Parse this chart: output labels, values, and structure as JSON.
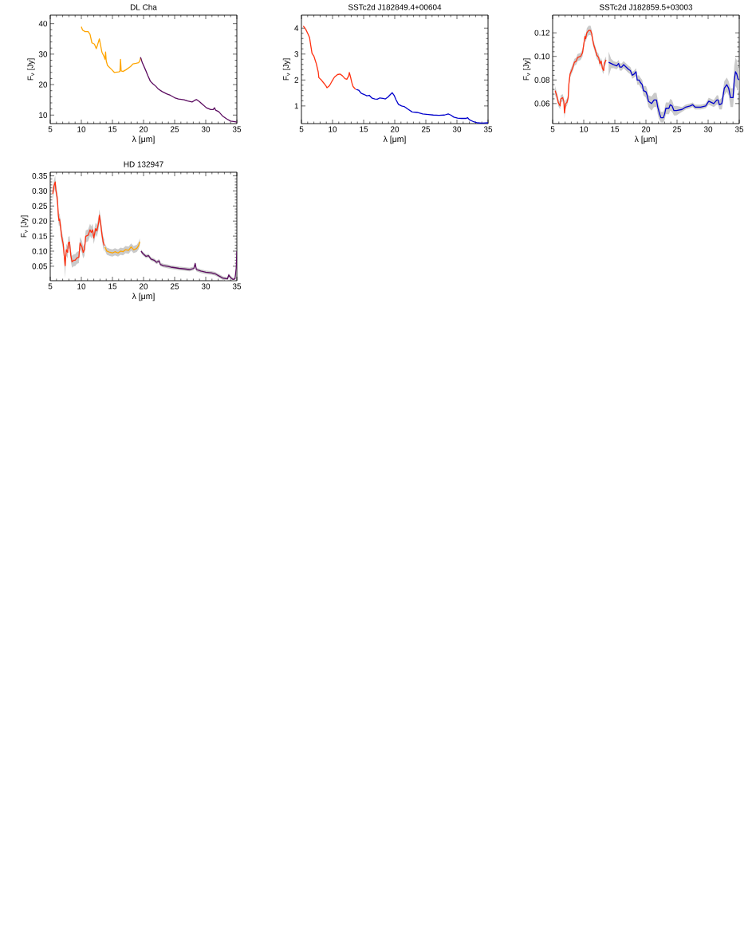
{
  "chart_data": [
    {
      "type": "line",
      "title": "DL Cha",
      "xlabel": "λ [μm]",
      "ylabel": "F$_{ν}$ [Jy]",
      "xlim": [
        5,
        35
      ],
      "ylim": [
        7.2,
        42.8
      ],
      "xticks": [
        5,
        10,
        15,
        20,
        25,
        30,
        35
      ],
      "yticks": [
        10,
        20,
        30,
        40
      ],
      "series": [
        {
          "color": "#ffa500",
          "x": [
            10.0,
            10.2,
            10.6,
            11.1,
            11.4,
            11.7,
            12.1,
            12.4,
            12.6,
            12.9,
            13.1,
            13.3,
            13.7,
            13.8,
            13.9,
            14.0,
            14.2,
            14.9,
            15.3,
            16.0,
            16.2,
            16.3,
            16.4,
            16.7,
            17.2,
            17.9,
            18.3,
            18.8,
            19.2,
            19.4,
            19.5
          ],
          "values": [
            39.0,
            37.9,
            37.4,
            37.4,
            36.5,
            33.7,
            33.3,
            31.8,
            33.0,
            35.0,
            32.9,
            30.7,
            29.0,
            28.3,
            30.7,
            27.8,
            26.3,
            24.9,
            24.0,
            24.2,
            24.3,
            28.3,
            24.5,
            24.3,
            24.9,
            25.9,
            26.8,
            27.0,
            27.2,
            27.8,
            28.7
          ]
        },
        {
          "color": "#5a0a5f",
          "x": [
            19.5,
            19.6,
            19.8,
            20.3,
            20.7,
            21.1,
            21.5,
            22.0,
            22.4,
            23.0,
            23.7,
            24.3,
            25.0,
            25.6,
            26.5,
            27.1,
            27.8,
            28.2,
            28.5,
            29.0,
            29.5,
            30.1,
            30.8,
            31.2,
            31.4,
            31.6,
            32.1,
            32.7,
            33.4,
            34.0,
            34.7,
            35.0
          ],
          "values": [
            29.0,
            28.5,
            27.2,
            24.9,
            22.9,
            21.1,
            20.3,
            19.4,
            18.5,
            17.7,
            17.0,
            16.5,
            15.7,
            15.3,
            15.0,
            14.6,
            14.3,
            14.8,
            15.1,
            14.4,
            13.5,
            12.4,
            11.8,
            11.8,
            12.4,
            11.6,
            11.1,
            9.7,
            8.7,
            8.0,
            7.8,
            7.7
          ]
        }
      ]
    },
    {
      "type": "line",
      "title": "SSTc2d J182849.4+00604",
      "xlabel": "λ [μm]",
      "ylabel": "F$_{ν}$ [Jy]",
      "xlim": [
        5,
        35
      ],
      "ylim": [
        0.32,
        4.5
      ],
      "xticks": [
        5,
        10,
        15,
        20,
        25,
        30,
        35
      ],
      "yticks": [
        1,
        2,
        3,
        4
      ],
      "series": [
        {
          "color": "#ff3010",
          "x": [
            5.3,
            5.7,
            6.0,
            6.3,
            6.5,
            6.7,
            7.0,
            7.2,
            7.4,
            7.7,
            7.8,
            8.2,
            8.6,
            9.0,
            9.1,
            9.5,
            9.9,
            10.3,
            10.8,
            11.2,
            11.6,
            12.0,
            12.3,
            12.6,
            12.7,
            12.9,
            13.1,
            13.3,
            13.7
          ],
          "values": [
            4.08,
            3.95,
            3.8,
            3.64,
            3.33,
            3.03,
            2.92,
            2.77,
            2.62,
            2.31,
            2.09,
            2.0,
            1.88,
            1.75,
            1.7,
            1.78,
            1.95,
            2.11,
            2.21,
            2.23,
            2.16,
            2.05,
            2.03,
            2.16,
            2.29,
            2.11,
            1.9,
            1.75,
            1.64
          ]
        },
        {
          "color": "#0000cc",
          "x": [
            13.8,
            14.2,
            14.6,
            15.1,
            15.5,
            15.9,
            16.3,
            16.8,
            17.2,
            17.6,
            18.1,
            18.5,
            18.9,
            19.3,
            19.6,
            19.9,
            20.2,
            20.6,
            21.1,
            21.5,
            22.1,
            22.8,
            23.6,
            24.5,
            25.4,
            26.2,
            27.1,
            28.0,
            28.6,
            29.0,
            29.5,
            30.1,
            30.7,
            31.5,
            31.7,
            32.0,
            32.7,
            33.3,
            34.0,
            35.0
          ],
          "values": [
            1.64,
            1.61,
            1.49,
            1.44,
            1.39,
            1.41,
            1.31,
            1.27,
            1.26,
            1.31,
            1.29,
            1.27,
            1.34,
            1.44,
            1.51,
            1.41,
            1.24,
            1.06,
            1.0,
            0.98,
            0.88,
            0.77,
            0.75,
            0.69,
            0.67,
            0.65,
            0.64,
            0.65,
            0.69,
            0.65,
            0.57,
            0.53,
            0.52,
            0.52,
            0.55,
            0.47,
            0.39,
            0.35,
            0.34,
            0.35
          ]
        }
      ]
    },
    {
      "type": "line",
      "title": "SSTc2d J182859.5+03003",
      "xlabel": "λ [μm]",
      "ylabel": "F$_{ν}$ [Jy]",
      "xlim": [
        5,
        35
      ],
      "ylim": [
        0.043,
        0.135
      ],
      "xticks": [
        5,
        10,
        15,
        20,
        25,
        30,
        35
      ],
      "yticks": [
        0.06,
        0.08,
        {
          "value": 0.1,
          "label": "0.10"
        },
        0.12
      ],
      "series": [
        {
          "color": "#ff3010",
          "x": [
            5.4,
            5.7,
            5.9,
            6.2,
            6.3,
            6.6,
            6.8,
            6.9,
            7.1,
            7.3,
            7.5,
            7.6,
            7.8,
            8.2,
            8.5,
            8.8,
            9.0,
            9.5,
            9.8,
            10.0,
            10.2,
            10.3,
            10.5,
            10.8,
            11.1,
            11.3,
            11.4,
            11.6,
            11.9,
            12.1,
            12.4,
            12.6,
            12.8,
            13.0,
            13.2,
            13.3,
            13.6
          ],
          "values": [
            0.071,
            0.066,
            0.061,
            0.058,
            0.064,
            0.065,
            0.062,
            0.052,
            0.06,
            0.061,
            0.065,
            0.076,
            0.085,
            0.09,
            0.095,
            0.096,
            0.099,
            0.1,
            0.103,
            0.11,
            0.117,
            0.115,
            0.12,
            0.122,
            0.122,
            0.119,
            0.115,
            0.11,
            0.105,
            0.101,
            0.099,
            0.094,
            0.096,
            0.09,
            0.088,
            0.094,
            0.097
          ],
          "lower": [
            0.067,
            0.063,
            0.058,
            0.055,
            0.061,
            0.062,
            0.059,
            0.047,
            0.057,
            0.058,
            0.062,
            0.073,
            0.082,
            0.087,
            0.092,
            0.093,
            0.096,
            0.097,
            0.1,
            0.107,
            0.114,
            0.112,
            0.116,
            0.118,
            0.118,
            0.116,
            0.112,
            0.107,
            0.102,
            0.098,
            0.096,
            0.091,
            0.093,
            0.087,
            0.085,
            0.091,
            0.094
          ],
          "upper": [
            0.075,
            0.069,
            0.064,
            0.061,
            0.067,
            0.068,
            0.065,
            0.057,
            0.063,
            0.064,
            0.068,
            0.079,
            0.088,
            0.093,
            0.098,
            0.099,
            0.102,
            0.103,
            0.106,
            0.113,
            0.12,
            0.118,
            0.124,
            0.126,
            0.126,
            0.122,
            0.118,
            0.113,
            0.108,
            0.104,
            0.102,
            0.097,
            0.099,
            0.093,
            0.091,
            0.097,
            0.1
          ]
        },
        {
          "color": "#0000cc",
          "x": [
            14.0,
            14.4,
            14.8,
            15.3,
            15.6,
            15.8,
            16.1,
            16.4,
            16.8,
            17.2,
            17.5,
            17.8,
            18.1,
            18.4,
            18.6,
            18.9,
            19.1,
            19.4,
            19.6,
            20.0,
            20.2,
            20.4,
            20.9,
            21.3,
            21.7,
            21.9,
            22.1,
            22.4,
            22.8,
            23.0,
            23.2,
            23.7,
            23.9,
            24.2,
            24.5,
            24.9,
            25.8,
            26.4,
            27.1,
            27.5,
            27.9,
            28.8,
            29.6,
            30.1,
            30.5,
            30.9,
            31.4,
            31.6,
            31.8,
            32.2,
            32.6,
            33.0,
            33.3,
            33.6,
            34.0,
            34.2,
            34.4,
            34.6,
            34.8,
            35.0
          ],
          "values": [
            0.095,
            0.094,
            0.093,
            0.092,
            0.094,
            0.091,
            0.091,
            0.093,
            0.091,
            0.089,
            0.088,
            0.084,
            0.085,
            0.087,
            0.08,
            0.08,
            0.078,
            0.076,
            0.071,
            0.07,
            0.067,
            0.062,
            0.06,
            0.063,
            0.063,
            0.057,
            0.053,
            0.048,
            0.048,
            0.051,
            0.056,
            0.056,
            0.059,
            0.058,
            0.054,
            0.054,
            0.055,
            0.057,
            0.058,
            0.059,
            0.057,
            0.057,
            0.058,
            0.062,
            0.061,
            0.06,
            0.063,
            0.063,
            0.059,
            0.06,
            0.073,
            0.076,
            0.073,
            0.065,
            0.065,
            0.08,
            0.087,
            0.085,
            0.081,
            0.08
          ],
          "lower": [
            0.083,
            0.09,
            0.09,
            0.089,
            0.091,
            0.088,
            0.088,
            0.09,
            0.088,
            0.086,
            0.085,
            0.081,
            0.082,
            0.084,
            0.076,
            0.076,
            0.074,
            0.072,
            0.067,
            0.065,
            0.062,
            0.057,
            0.054,
            0.057,
            0.057,
            0.051,
            0.047,
            0.044,
            0.044,
            0.046,
            0.051,
            0.051,
            0.054,
            0.053,
            0.05,
            0.05,
            0.053,
            0.055,
            0.056,
            0.057,
            0.055,
            0.055,
            0.056,
            0.059,
            0.058,
            0.057,
            0.059,
            0.059,
            0.055,
            0.055,
            0.067,
            0.07,
            0.067,
            0.057,
            0.057,
            0.068,
            0.075,
            0.073,
            0.071,
            0.07
          ],
          "upper": [
            0.104,
            0.098,
            0.096,
            0.095,
            0.097,
            0.094,
            0.094,
            0.096,
            0.094,
            0.092,
            0.091,
            0.087,
            0.088,
            0.09,
            0.084,
            0.084,
            0.082,
            0.08,
            0.075,
            0.075,
            0.072,
            0.067,
            0.066,
            0.069,
            0.069,
            0.063,
            0.059,
            0.053,
            0.053,
            0.056,
            0.061,
            0.061,
            0.064,
            0.063,
            0.058,
            0.058,
            0.057,
            0.059,
            0.06,
            0.061,
            0.059,
            0.059,
            0.06,
            0.065,
            0.064,
            0.063,
            0.067,
            0.067,
            0.063,
            0.065,
            0.079,
            0.082,
            0.079,
            0.073,
            0.073,
            0.092,
            0.099,
            0.097,
            0.091,
            0.09
          ]
        }
      ]
    },
    {
      "type": "line",
      "title": "HD 132947",
      "xlabel": "λ [μm]",
      "ylabel": "F$_{ν}$ [Jy]",
      "xlim": [
        5,
        35
      ],
      "ylim": [
        0.002,
        0.362
      ],
      "xticks": [
        5,
        10,
        15,
        20,
        25,
        30,
        35
      ],
      "yticks": [
        0.05,
        {
          "value": 0.1,
          "label": "0.10"
        },
        0.15,
        {
          "value": 0.2,
          "label": "0.20"
        },
        0.25,
        {
          "value": 0.3,
          "label": "0.30"
        },
        0.35
      ],
      "series": [
        {
          "color": "#ff3010",
          "x": [
            5.4,
            5.6,
            5.8,
            5.9,
            6.1,
            6.2,
            6.3,
            6.4,
            6.5,
            6.7,
            6.8,
            7.1,
            7.2,
            7.4,
            7.5,
            7.6,
            7.8,
            7.9,
            8.1,
            8.3,
            8.5,
            8.8,
            9.0,
            9.3,
            9.6,
            9.8,
            10.1,
            10.3,
            10.5,
            10.7,
            11.1,
            11.4,
            11.6,
            11.8,
            12.0,
            12.3,
            12.5,
            12.8,
            12.9,
            13.1,
            13.3,
            13.5,
            13.7
          ],
          "values": [
            0.29,
            0.316,
            0.33,
            0.303,
            0.281,
            0.255,
            0.219,
            0.202,
            0.206,
            0.175,
            0.153,
            0.122,
            0.096,
            0.052,
            0.087,
            0.105,
            0.096,
            0.127,
            0.13,
            0.087,
            0.065,
            0.07,
            0.07,
            0.078,
            0.08,
            0.127,
            0.114,
            0.096,
            0.105,
            0.149,
            0.153,
            0.171,
            0.162,
            0.171,
            0.144,
            0.175,
            0.167,
            0.197,
            0.219,
            0.193,
            0.158,
            0.131,
            0.118
          ],
          "lower": [
            0.27,
            0.296,
            0.31,
            0.283,
            0.261,
            0.235,
            0.199,
            0.182,
            0.186,
            0.155,
            0.133,
            0.102,
            0.076,
            0.01,
            0.067,
            0.085,
            0.076,
            0.107,
            0.11,
            0.067,
            0.045,
            0.05,
            0.05,
            0.058,
            0.06,
            0.107,
            0.094,
            0.076,
            0.085,
            0.129,
            0.133,
            0.151,
            0.142,
            0.151,
            0.124,
            0.155,
            0.147,
            0.177,
            0.199,
            0.173,
            0.138,
            0.111,
            0.098
          ],
          "upper": [
            0.31,
            0.336,
            0.35,
            0.323,
            0.301,
            0.275,
            0.239,
            0.222,
            0.226,
            0.195,
            0.173,
            0.142,
            0.116,
            0.072,
            0.107,
            0.125,
            0.116,
            0.147,
            0.15,
            0.107,
            0.085,
            0.09,
            0.09,
            0.098,
            0.1,
            0.147,
            0.134,
            0.116,
            0.125,
            0.169,
            0.173,
            0.191,
            0.182,
            0.191,
            0.164,
            0.195,
            0.187,
            0.217,
            0.239,
            0.213,
            0.178,
            0.151,
            0.138
          ]
        },
        {
          "color": "#ffa500",
          "x": [
            13.8,
            14.1,
            14.6,
            15.0,
            15.4,
            15.9,
            16.3,
            16.7,
            17.1,
            17.6,
            18.0,
            18.4,
            18.9,
            19.2,
            19.4
          ],
          "values": [
            0.114,
            0.1,
            0.096,
            0.094,
            0.098,
            0.094,
            0.1,
            0.098,
            0.105,
            0.103,
            0.114,
            0.105,
            0.109,
            0.118,
            0.131
          ],
          "lower": [
            0.102,
            0.088,
            0.084,
            0.082,
            0.086,
            0.082,
            0.088,
            0.086,
            0.093,
            0.091,
            0.102,
            0.093,
            0.097,
            0.106,
            0.119
          ],
          "upper": [
            0.126,
            0.112,
            0.108,
            0.106,
            0.11,
            0.106,
            0.112,
            0.11,
            0.117,
            0.115,
            0.126,
            0.117,
            0.121,
            0.13,
            0.143
          ]
        },
        {
          "color": "#5a0a5f",
          "x": [
            19.6,
            19.9,
            20.4,
            20.8,
            21.2,
            21.7,
            22.1,
            22.5,
            22.7,
            23.2,
            23.8,
            24.4,
            25.1,
            25.7,
            26.6,
            27.4,
            28.1,
            28.3,
            28.5,
            29.2,
            30.0,
            30.9,
            31.5,
            32.2,
            32.8,
            33.5,
            33.7,
            34.0,
            34.4,
            34.7,
            34.9,
            35.0
          ],
          "values": [
            0.1,
            0.092,
            0.083,
            0.085,
            0.074,
            0.07,
            0.063,
            0.068,
            0.056,
            0.052,
            0.05,
            0.047,
            0.045,
            0.043,
            0.041,
            0.039,
            0.043,
            0.059,
            0.039,
            0.034,
            0.03,
            0.028,
            0.025,
            0.017,
            0.01,
            0.008,
            0.021,
            0.012,
            0.006,
            0.008,
            0.043,
            0.1
          ],
          "lower": [
            0.094,
            0.086,
            0.077,
            0.079,
            0.068,
            0.064,
            0.057,
            0.062,
            0.05,
            0.046,
            0.044,
            0.041,
            0.039,
            0.037,
            0.035,
            0.033,
            0.037,
            0.053,
            0.033,
            0.028,
            0.024,
            0.022,
            0.019,
            0.011,
            0.004,
            0.003,
            0.015,
            0.006,
            0.003,
            0.003,
            0.03,
            0.085
          ],
          "upper": [
            0.106,
            0.098,
            0.089,
            0.091,
            0.08,
            0.076,
            0.069,
            0.074,
            0.062,
            0.058,
            0.056,
            0.053,
            0.051,
            0.049,
            0.047,
            0.045,
            0.049,
            0.065,
            0.045,
            0.04,
            0.036,
            0.034,
            0.031,
            0.023,
            0.016,
            0.014,
            0.027,
            0.018,
            0.012,
            0.014,
            0.056,
            0.115
          ]
        }
      ]
    }
  ]
}
